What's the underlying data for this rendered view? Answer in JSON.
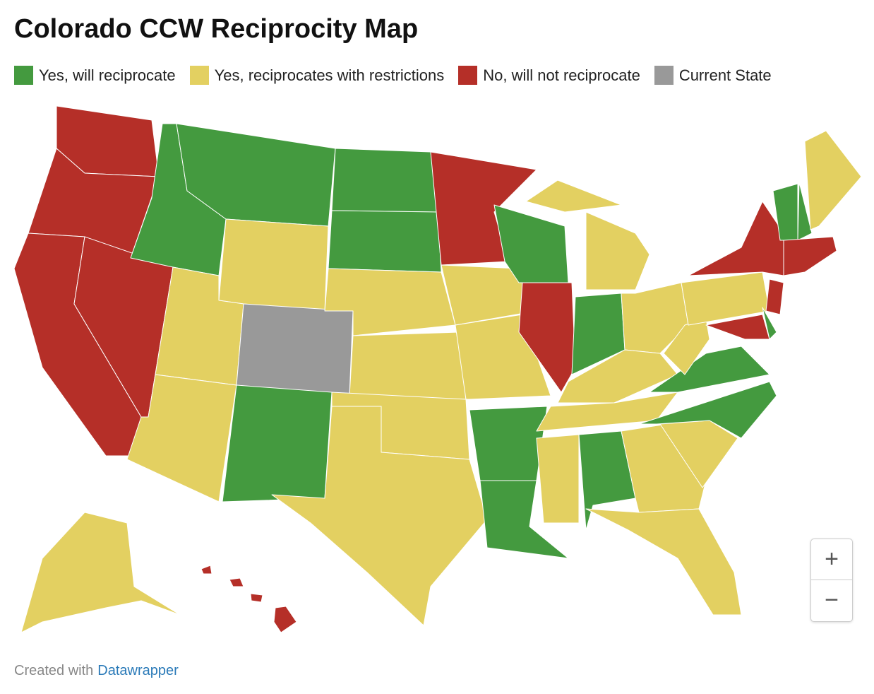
{
  "header": {
    "title": "Colorado CCW Reciprocity Map"
  },
  "legend": {
    "items": [
      {
        "label": "Yes, will reciprocate",
        "color": "#449a3f"
      },
      {
        "label": "Yes, reciprocates with restrictions",
        "color": "#e3d061"
      },
      {
        "label": "No, will not reciprocate",
        "color": "#b52f28"
      },
      {
        "label": "Current State",
        "color": "#999999"
      }
    ]
  },
  "zoom": {
    "in": "+",
    "out": "−"
  },
  "footer": {
    "text": "Created with",
    "link": "Datawrapper"
  }
}
